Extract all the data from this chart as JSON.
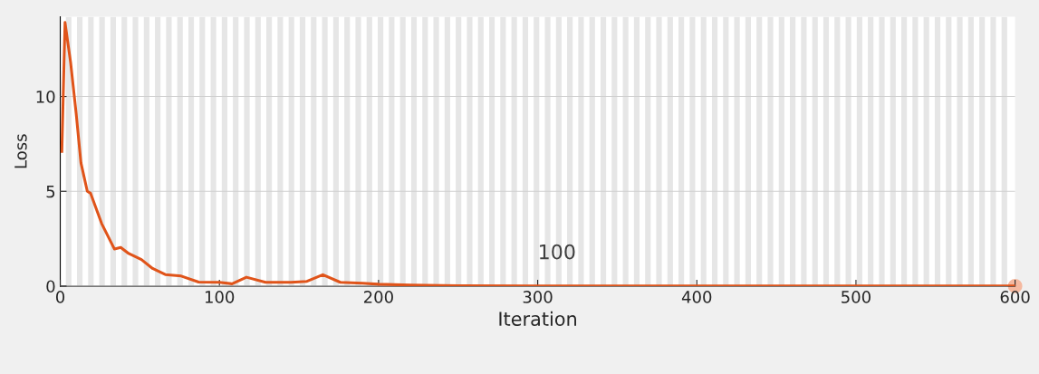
{
  "chart_data": {
    "type": "line",
    "xlabel": "Iteration",
    "ylabel": "Loss",
    "xlim": [
      0,
      600
    ],
    "ylim": [
      0,
      14.2
    ],
    "xticks": [
      0,
      100,
      200,
      300,
      400,
      500,
      600
    ],
    "yticks": [
      0,
      5,
      10
    ],
    "grid": "y",
    "line_style": "solid",
    "series": [
      {
        "color": "#e0541a",
        "x": [
          1,
          3,
          6.5,
          10,
          13,
          17,
          19,
          26,
          34,
          38,
          43,
          51,
          58,
          66,
          76,
          87,
          100,
          108,
          117,
          129,
          145,
          155,
          165,
          176,
          190,
          200,
          220,
          250,
          300,
          400,
          500,
          600
        ],
        "values": [
          7.1,
          13.9,
          11.8,
          9.1,
          6.5,
          5.0,
          4.9,
          3.3,
          1.96,
          2.04,
          1.72,
          1.4,
          0.93,
          0.61,
          0.53,
          0.21,
          0.2,
          0.12,
          0.47,
          0.2,
          0.2,
          0.25,
          0.6,
          0.2,
          0.15,
          0.1,
          0.05,
          0.02,
          0.01,
          0.01,
          0.01,
          0.01
        ]
      },
      {
        "type": "scatter",
        "color": "#f5b9a0",
        "x": [
          600
        ],
        "values": [
          0
        ]
      }
    ],
    "annotations": [
      {
        "text": "100",
        "x": 300,
        "y": 1.2
      }
    ],
    "bands": [
      {
        "axis": "x",
        "from": 3.5,
        "to": 7
      },
      {
        "axis": "x",
        "from": 10.5,
        "to": 14
      },
      {
        "axis": "x",
        "from": 17.5,
        "to": 21
      },
      {
        "axis": "x",
        "from": 24.5,
        "to": 28
      },
      {
        "axis": "x",
        "from": 31.5,
        "to": 35
      },
      {
        "axis": "x",
        "from": 38.5,
        "to": 42
      },
      {
        "axis": "x",
        "from": 45.5,
        "to": 49
      },
      {
        "axis": "x",
        "from": 52.5,
        "to": 56
      },
      {
        "axis": "x",
        "from": 59.5,
        "to": 63
      },
      {
        "axis": "x",
        "from": 66.5,
        "to": 70
      },
      {
        "axis": "x",
        "from": 73.5,
        "to": 77
      },
      {
        "axis": "x",
        "from": 80.5,
        "to": 84
      },
      {
        "axis": "x",
        "from": 87.5,
        "to": 91
      },
      {
        "axis": "x",
        "from": 94.5,
        "to": 98
      },
      {
        "axis": "x",
        "from": 101.5,
        "to": 105
      },
      {
        "axis": "x",
        "from": 108.5,
        "to": 112
      },
      {
        "axis": "x",
        "from": 115.5,
        "to": 119
      },
      {
        "axis": "x",
        "from": 122.5,
        "to": 126
      },
      {
        "axis": "x",
        "from": 129.5,
        "to": 133
      },
      {
        "axis": "x",
        "from": 136.5,
        "to": 140
      },
      {
        "axis": "x",
        "from": 143.5,
        "to": 147
      },
      {
        "axis": "x",
        "from": 150.5,
        "to": 154
      },
      {
        "axis": "x",
        "from": 157.5,
        "to": 161
      },
      {
        "axis": "x",
        "from": 164.5,
        "to": 168
      },
      {
        "axis": "x",
        "from": 171.5,
        "to": 175
      },
      {
        "axis": "x",
        "from": 178.5,
        "to": 182
      },
      {
        "axis": "x",
        "from": 185.5,
        "to": 189
      },
      {
        "axis": "x",
        "from": 192.5,
        "to": 196
      },
      {
        "axis": "x",
        "from": 199.5,
        "to": 203
      },
      {
        "axis": "x",
        "from": 206.5,
        "to": 210
      },
      {
        "axis": "x",
        "from": 213.5,
        "to": 217
      },
      {
        "axis": "x",
        "from": 220.5,
        "to": 224
      },
      {
        "axis": "x",
        "from": 227.5,
        "to": 231
      },
      {
        "axis": "x",
        "from": 234.5,
        "to": 238
      },
      {
        "axis": "x",
        "from": 241.5,
        "to": 245
      },
      {
        "axis": "x",
        "from": 248.5,
        "to": 252
      },
      {
        "axis": "x",
        "from": 255.5,
        "to": 259
      },
      {
        "axis": "x",
        "from": 262.5,
        "to": 266
      },
      {
        "axis": "x",
        "from": 269.5,
        "to": 273
      },
      {
        "axis": "x",
        "from": 276.5,
        "to": 280
      },
      {
        "axis": "x",
        "from": 283.5,
        "to": 287
      },
      {
        "axis": "x",
        "from": 290.5,
        "to": 294
      },
      {
        "axis": "x",
        "from": 297.5,
        "to": 301
      },
      {
        "axis": "x",
        "from": 304.5,
        "to": 308
      },
      {
        "axis": "x",
        "from": 311.5,
        "to": 315
      },
      {
        "axis": "x",
        "from": 318.5,
        "to": 322
      },
      {
        "axis": "x",
        "from": 325.5,
        "to": 329
      },
      {
        "axis": "x",
        "from": 332.5,
        "to": 336
      },
      {
        "axis": "x",
        "from": 339.5,
        "to": 343
      },
      {
        "axis": "x",
        "from": 346.5,
        "to": 350
      },
      {
        "axis": "x",
        "from": 353.5,
        "to": 357
      },
      {
        "axis": "x",
        "from": 360.5,
        "to": 364
      },
      {
        "axis": "x",
        "from": 367.5,
        "to": 371
      },
      {
        "axis": "x",
        "from": 374.5,
        "to": 378
      },
      {
        "axis": "x",
        "from": 381.5,
        "to": 385
      },
      {
        "axis": "x",
        "from": 388.5,
        "to": 392
      },
      {
        "axis": "x",
        "from": 395.5,
        "to": 399
      },
      {
        "axis": "x",
        "from": 402.5,
        "to": 406
      },
      {
        "axis": "x",
        "from": 409.5,
        "to": 413
      },
      {
        "axis": "x",
        "from": 416.5,
        "to": 420
      },
      {
        "axis": "x",
        "from": 423.5,
        "to": 427
      },
      {
        "axis": "x",
        "from": 430.5,
        "to": 434
      },
      {
        "axis": "x",
        "from": 437.5,
        "to": 441
      },
      {
        "axis": "x",
        "from": 444.5,
        "to": 448
      },
      {
        "axis": "x",
        "from": 451.5,
        "to": 455
      },
      {
        "axis": "x",
        "from": 458.5,
        "to": 462
      },
      {
        "axis": "x",
        "from": 465.5,
        "to": 469
      },
      {
        "axis": "x",
        "from": 472.5,
        "to": 476
      },
      {
        "axis": "x",
        "from": 479.5,
        "to": 483
      },
      {
        "axis": "x",
        "from": 486.5,
        "to": 490
      },
      {
        "axis": "x",
        "from": 493.5,
        "to": 497
      },
      {
        "axis": "x",
        "from": 500.5,
        "to": 504
      },
      {
        "axis": "x",
        "from": 507.5,
        "to": 511
      },
      {
        "axis": "x",
        "from": 514.5,
        "to": 518
      },
      {
        "axis": "x",
        "from": 521.5,
        "to": 525
      },
      {
        "axis": "x",
        "from": 528.5,
        "to": 532
      },
      {
        "axis": "x",
        "from": 535.5,
        "to": 539
      },
      {
        "axis": "x",
        "from": 542.5,
        "to": 546
      },
      {
        "axis": "x",
        "from": 549.5,
        "to": 553
      },
      {
        "axis": "x",
        "from": 556.5,
        "to": 560
      },
      {
        "axis": "x",
        "from": 563.5,
        "to": 567
      },
      {
        "axis": "x",
        "from": 570.5,
        "to": 574
      },
      {
        "axis": "x",
        "from": 577.5,
        "to": 581
      },
      {
        "axis": "x",
        "from": 584.5,
        "to": 588
      },
      {
        "axis": "x",
        "from": 591.5,
        "to": 595
      }
    ]
  }
}
